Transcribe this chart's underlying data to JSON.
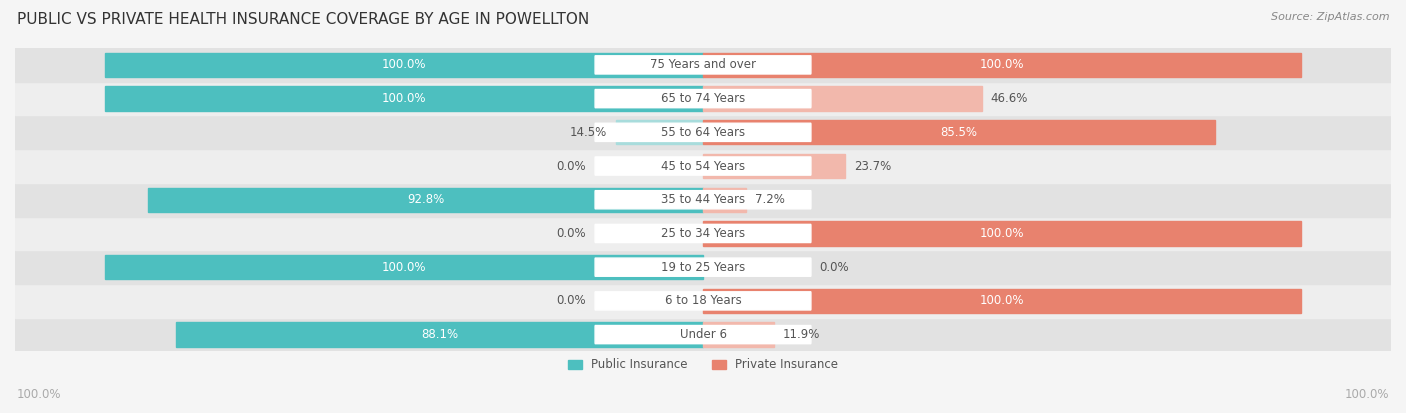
{
  "title": "PUBLIC VS PRIVATE HEALTH INSURANCE COVERAGE BY AGE IN POWELLTON",
  "source": "Source: ZipAtlas.com",
  "categories": [
    "Under 6",
    "6 to 18 Years",
    "19 to 25 Years",
    "25 to 34 Years",
    "35 to 44 Years",
    "45 to 54 Years",
    "55 to 64 Years",
    "65 to 74 Years",
    "75 Years and over"
  ],
  "public": [
    88.1,
    0.0,
    100.0,
    0.0,
    92.8,
    0.0,
    14.5,
    100.0,
    100.0
  ],
  "private": [
    11.9,
    100.0,
    0.0,
    100.0,
    7.2,
    23.7,
    85.5,
    46.6,
    100.0
  ],
  "public_color": "#4DBFBF",
  "private_color": "#E8826E",
  "public_color_light": "#A8DCDC",
  "private_color_light": "#F2B8AC",
  "bg_color": "#f5f5f5",
  "row_bg_dark": "#e2e2e2",
  "row_bg_light": "#eeeeee",
  "label_fontsize": 8.5,
  "title_fontsize": 11,
  "source_fontsize": 8
}
